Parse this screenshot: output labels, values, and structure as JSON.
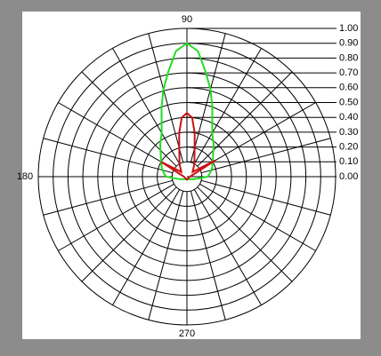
{
  "chart_data": {
    "type": "polar",
    "rlim": [
      0,
      1
    ],
    "rticks": [
      {
        "value": 0,
        "label": "0.00"
      },
      {
        "value": 0.1,
        "label": "0.10"
      },
      {
        "value": 0.2,
        "label": "0.20"
      },
      {
        "value": 0.3,
        "label": "0.30"
      },
      {
        "value": 0.4,
        "label": "0.40"
      },
      {
        "value": 0.5,
        "label": "0.50"
      },
      {
        "value": 0.6,
        "label": "0.60"
      },
      {
        "value": 0.7,
        "label": "0.70"
      },
      {
        "value": 0.8,
        "label": "0.80"
      },
      {
        "value": 0.9,
        "label": "0.90"
      },
      {
        "value": 1,
        "label": "1.00"
      }
    ],
    "thetaticks": [
      90,
      180,
      270
    ],
    "thetagrid": [
      0,
      15,
      30,
      45,
      60,
      75,
      90,
      105,
      120,
      135,
      150,
      165,
      180,
      195,
      210,
      225,
      240,
      255,
      270,
      285,
      300,
      315,
      330,
      345
    ],
    "grid": true,
    "series": [
      {
        "color": "#22dd22",
        "x": [
          0,
          10,
          20,
          30,
          40,
          50,
          60,
          70,
          75,
          80,
          85,
          90,
          95,
          100,
          105,
          110,
          120,
          130,
          140,
          150,
          160,
          170,
          180,
          200,
          240,
          270,
          300,
          340,
          360
        ],
        "values": [
          0.14,
          0.16,
          0.18,
          0.2,
          0.23,
          0.28,
          0.34,
          0.5,
          0.61,
          0.72,
          0.85,
          0.9,
          0.85,
          0.72,
          0.61,
          0.5,
          0.34,
          0.28,
          0.23,
          0.2,
          0.18,
          0.16,
          0.14,
          0.05,
          0.02,
          0.02,
          0.02,
          0.05,
          0.14
        ]
      },
      {
        "color": "#cc1111",
        "x": [
          0,
          20,
          30,
          40,
          60,
          75,
          80,
          85,
          90,
          95,
          100,
          105,
          120,
          140,
          150,
          160,
          180,
          270,
          360
        ],
        "values": [
          0.02,
          0.05,
          0.22,
          0.05,
          0.1,
          0.2,
          0.3,
          0.4,
          0.43,
          0.4,
          0.3,
          0.2,
          0.1,
          0.05,
          0.2,
          0.05,
          0.02,
          0.02,
          0.02
        ]
      }
    ]
  }
}
